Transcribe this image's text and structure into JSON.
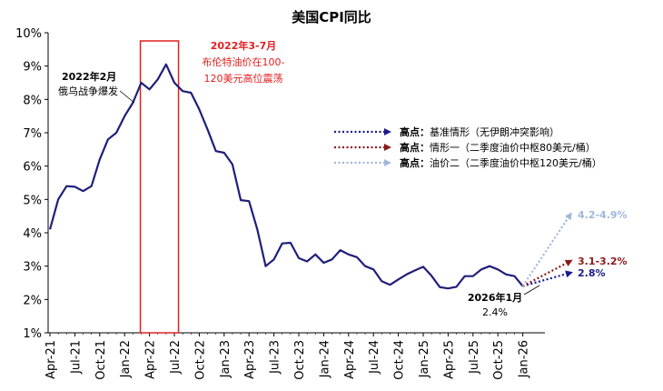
{
  "chart_data": {
    "type": "line",
    "title": "美国CPI同比",
    "y_unit": "%",
    "ylim": [
      1,
      10
    ],
    "y_ticks": [
      "1%",
      "2%",
      "3%",
      "4%",
      "5%",
      "6%",
      "7%",
      "8%",
      "9%",
      "10%"
    ],
    "x_tick_labels": [
      "Apr-21",
      "Jul-21",
      "Oct-21",
      "Jan-22",
      "Apr-22",
      "Jul-22",
      "Oct-22",
      "Jan-23",
      "Apr-23",
      "Jul-23",
      "Oct-23",
      "Jan-24",
      "Apr-24",
      "Jul-24",
      "Oct-24",
      "Jan-25",
      "Apr-25",
      "Jul-25",
      "Oct-25",
      "Jan-26"
    ],
    "series": [
      {
        "name": "美国CPI同比",
        "color": "#1f1f7a",
        "start_month": "2021-04",
        "points_per_month": 2,
        "values": [
          4.1,
          5.0,
          5.4,
          5.38,
          5.25,
          5.4,
          6.2,
          6.8,
          7.0,
          7.5,
          7.9,
          8.5,
          8.3,
          8.6,
          9.05,
          8.5,
          8.25,
          8.2,
          7.7,
          7.1,
          6.45,
          6.4,
          6.05,
          4.98,
          4.95,
          4.1,
          3.0,
          3.2,
          3.68,
          3.7,
          3.24,
          3.14,
          3.35,
          3.1,
          3.2,
          3.48,
          3.35,
          3.27,
          3.0,
          2.9,
          2.55,
          2.44,
          2.6,
          2.75,
          2.87,
          2.98,
          2.71,
          2.37,
          2.33,
          2.38,
          2.7,
          2.7,
          2.9,
          3.0,
          2.9,
          2.75,
          2.7,
          2.4
        ]
      }
    ],
    "scenarios": [
      {
        "name": "基准情形",
        "label": "2.8%",
        "value": 2.8,
        "color": "#1a1a8c"
      },
      {
        "name": "情形一",
        "label": "3.1-3.2%",
        "value": 3.15,
        "color": "#8b1a1a"
      },
      {
        "name": "油价二",
        "label": "4.2-4.9%",
        "value": 4.55,
        "color": "#9fb8d8"
      }
    ],
    "highlight_box": {
      "from_month": "2022-03",
      "to_month": "2022-07",
      "color": "#e02020"
    }
  },
  "annotations": {
    "war_date": "2022年2月",
    "war_text": "俄乌战争爆发",
    "oil_date": "2022年3-7月",
    "oil_line1": "布伦特油价在100-",
    "oil_line2": "120美元高位震荡",
    "last_date": "2026年1月",
    "last_value": "2.4%"
  },
  "legend": {
    "prefix": "高点：",
    "items": [
      {
        "text": "基准情形（无伊朗冲突影响）",
        "color": "#1a1a8c"
      },
      {
        "text": "情形一（二季度油价中枢80美元/桶）",
        "color": "#8b1a1a"
      },
      {
        "text": "油价二（二季度油价中枢120美元/桶）",
        "color": "#9fb8d8"
      }
    ]
  }
}
